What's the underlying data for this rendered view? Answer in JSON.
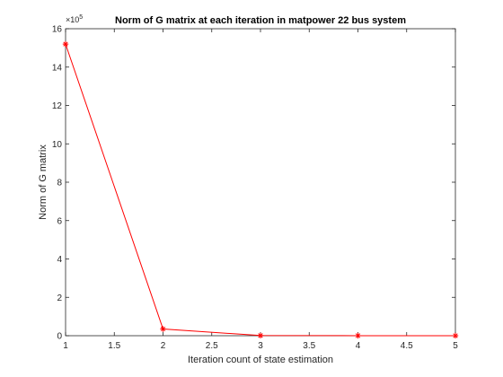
{
  "chart_data": {
    "type": "line",
    "title": "Norm of G matrix at each iteration in matpower 22 bus system",
    "xlabel": "Iteration count of state estimation",
    "ylabel": "Norm of G matrix",
    "x": [
      1,
      2,
      3,
      4,
      5
    ],
    "series": [
      {
        "values": [
          1520000,
          35000,
          1000,
          200,
          100
        ],
        "color": "#ff0000",
        "marker": "asterisk"
      }
    ],
    "xlim": [
      1,
      5
    ],
    "ylim": [
      0,
      1600000
    ],
    "xticks": [
      1,
      1.5,
      2,
      2.5,
      3,
      3.5,
      4,
      4.5,
      5
    ],
    "xtick_labels": [
      "1",
      "1.5",
      "2",
      "2.5",
      "3",
      "3.5",
      "4",
      "4.5",
      "5"
    ],
    "yticks": [
      0,
      200000,
      400000,
      600000,
      800000,
      1000000,
      1200000,
      1400000,
      1600000
    ],
    "ytick_labels": [
      "0",
      "2",
      "4",
      "6",
      "8",
      "10",
      "12",
      "14",
      "16"
    ],
    "y_exponent": {
      "base": "×10",
      "power": "5"
    },
    "grid": false,
    "box": true
  }
}
